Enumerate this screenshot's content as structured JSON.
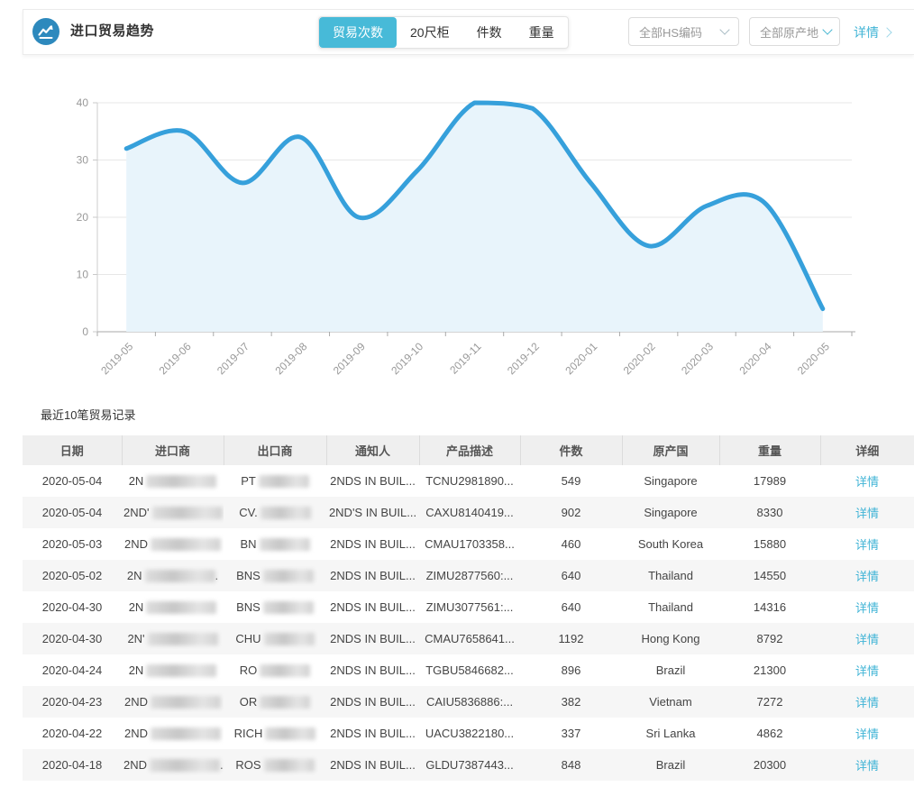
{
  "header": {
    "title": "进口贸易趋势",
    "icon": "trend-chart-icon",
    "icon_color": "#2d89bd",
    "accent_color": "#47bad8",
    "tabs": [
      {
        "label": "贸易次数",
        "active": true
      },
      {
        "label": "20尺柜",
        "active": false
      },
      {
        "label": "件数",
        "active": false
      },
      {
        "label": "重量",
        "active": false
      }
    ],
    "filters": [
      {
        "value": "全部HS编码"
      },
      {
        "value": "全部原产地"
      }
    ],
    "detail_link": "详情"
  },
  "chart_data": {
    "type": "area",
    "title": "",
    "xlabel": "",
    "ylabel": "",
    "x": [
      "2019-05",
      "2019-06",
      "2019-07",
      "2019-08",
      "2019-09",
      "2019-10",
      "2019-11",
      "2019-12",
      "2020-01",
      "2020-02",
      "2020-03",
      "2020-04",
      "2020-05"
    ],
    "series": [
      {
        "name": "贸易次数",
        "values": [
          32,
          35,
          26,
          34,
          20,
          28,
          40,
          39,
          26,
          15,
          22,
          22.5,
          4
        ]
      }
    ],
    "ylim": [
      0,
      40
    ],
    "yticks": [
      0,
      10,
      20,
      30,
      40
    ],
    "grid": true,
    "legend_position": "none",
    "x_label_rotation": 45,
    "line_color": "#36a0db",
    "area_color": "#e8f4fb",
    "axis_label_color": "#999999"
  },
  "table": {
    "section_title": "最近10笔贸易记录",
    "columns": [
      "日期",
      "进口商",
      "出口商",
      "通知人",
      "产品描述",
      "件数",
      "原产国",
      "重量",
      "详细"
    ],
    "detail_label": "详情",
    "rows": [
      {
        "date": "2020-05-04",
        "importer_prefix": "2N",
        "importer_suffix": "",
        "exporter_prefix": "PT",
        "notifier": "2NDS IN BUIL...",
        "product": "TCNU2981890...",
        "qty": "549",
        "origin": "Singapore",
        "weight": "17989"
      },
      {
        "date": "2020-05-04",
        "importer_prefix": "2ND'",
        "importer_suffix": "",
        "exporter_prefix": "CV.",
        "notifier": "2ND'S IN BUIL...",
        "product": "CAXU8140419...",
        "qty": "902",
        "origin": "Singapore",
        "weight": "8330"
      },
      {
        "date": "2020-05-03",
        "importer_prefix": "2ND",
        "importer_suffix": "",
        "exporter_prefix": "BN",
        "notifier": "2NDS IN BUIL...",
        "product": "CMAU1703358...",
        "qty": "460",
        "origin": "South Korea",
        "weight": "15880"
      },
      {
        "date": "2020-05-02",
        "importer_prefix": "2N",
        "importer_suffix": ".",
        "exporter_prefix": "BNS",
        "notifier": "2NDS IN BUIL...",
        "product": "ZIMU2877560:...",
        "qty": "640",
        "origin": "Thailand",
        "weight": "14550"
      },
      {
        "date": "2020-04-30",
        "importer_prefix": "2N",
        "importer_suffix": "",
        "exporter_prefix": "BNS",
        "notifier": "2NDS IN BUIL...",
        "product": "ZIMU3077561:...",
        "qty": "640",
        "origin": "Thailand",
        "weight": "14316"
      },
      {
        "date": "2020-04-30",
        "importer_prefix": "2N'",
        "importer_suffix": "",
        "exporter_prefix": "CHU",
        "notifier": "2NDS IN BUIL...",
        "product": "CMAU7658641...",
        "qty": "1192",
        "origin": "Hong Kong",
        "weight": "8792"
      },
      {
        "date": "2020-04-24",
        "importer_prefix": "2N",
        "importer_suffix": "",
        "exporter_prefix": "RO",
        "notifier": "2NDS IN BUIL...",
        "product": "TGBU5846682...",
        "qty": "896",
        "origin": "Brazil",
        "weight": "21300"
      },
      {
        "date": "2020-04-23",
        "importer_prefix": "2ND",
        "importer_suffix": "",
        "exporter_prefix": "OR",
        "notifier": "2NDS IN BUIL...",
        "product": "CAIU5836886:...",
        "qty": "382",
        "origin": "Vietnam",
        "weight": "7272"
      },
      {
        "date": "2020-04-22",
        "importer_prefix": "2ND",
        "importer_suffix": "",
        "exporter_prefix": "RICH",
        "notifier": "2NDS IN BUIL...",
        "product": "UACU3822180...",
        "qty": "337",
        "origin": "Sri Lanka",
        "weight": "4862"
      },
      {
        "date": "2020-04-18",
        "importer_prefix": "2ND",
        "importer_suffix": ".",
        "exporter_prefix": "ROS",
        "notifier": "2NDS IN BUIL...",
        "product": "GLDU7387443...",
        "qty": "848",
        "origin": "Brazil",
        "weight": "20300"
      }
    ]
  }
}
